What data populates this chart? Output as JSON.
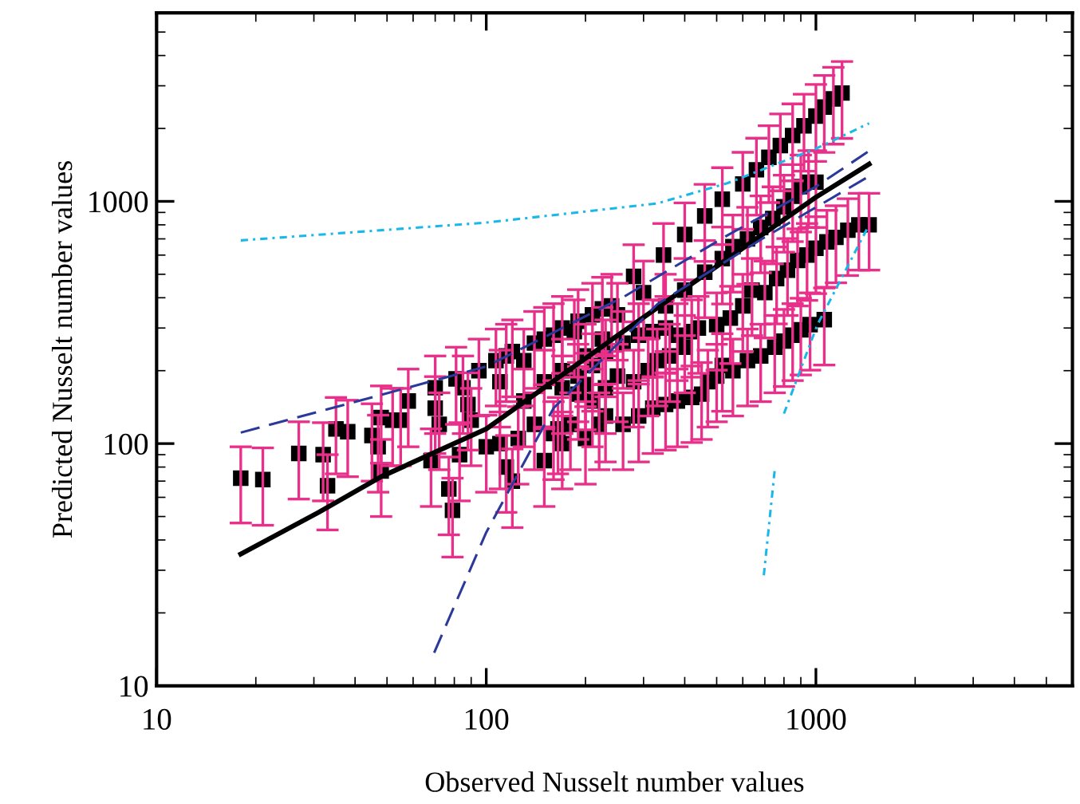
{
  "chart_data": {
    "type": "scatter",
    "xlabel": "Observed Nusselt number values",
    "ylabel": "Predicted Nusselt number values",
    "log": "xy",
    "xlim": [
      10,
      6000
    ],
    "ylim": [
      10,
      6000
    ],
    "xticks": [
      10,
      100,
      1000
    ],
    "yticks": [
      10,
      100,
      1000
    ],
    "grid": false,
    "marker": "square",
    "series": [
      {
        "color": "#000000",
        "x": [
          18,
          21,
          27,
          32,
          33,
          35,
          38,
          45,
          47,
          48,
          48,
          52,
          55,
          58,
          68,
          70,
          70,
          72,
          77,
          79,
          81,
          83,
          85,
          88,
          90,
          95,
          100,
          107,
          110,
          110,
          115,
          115,
          120,
          120,
          125,
          130,
          130,
          140,
          140,
          150,
          150,
          150,
          160,
          160,
          165,
          170,
          170,
          170,
          170,
          180,
          185,
          190,
          190,
          190,
          200,
          200,
          200,
          210,
          210,
          210,
          220,
          225,
          225,
          230,
          230,
          230,
          240,
          250,
          250,
          260,
          260,
          280,
          280,
          290,
          290,
          300,
          310,
          320,
          320,
          330,
          345,
          350,
          350,
          350,
          360,
          380,
          380,
          400,
          400,
          400,
          420,
          420,
          440,
          450,
          460,
          460,
          470,
          500,
          500,
          520,
          520,
          520,
          550,
          560,
          560,
          600,
          600,
          620,
          620,
          640,
          660,
          680,
          680,
          700,
          720,
          740,
          750,
          760,
          780,
          800,
          800,
          820,
          850,
          850,
          850,
          880,
          900,
          900,
          920,
          940,
          950,
          960,
          1000,
          1000,
          1000,
          1060,
          1060,
          1080,
          1130,
          1150,
          1200,
          1250,
          1350,
          1450
        ],
        "values": [
          72,
          71,
          91,
          90,
          67,
          115,
          112,
          108,
          97,
          77,
          128,
          125,
          125,
          150,
          85,
          170,
          140,
          120,
          65,
          53,
          185,
          90,
          170,
          145,
          125,
          200,
          97,
          220,
          180,
          100,
          80,
          230,
          70,
          240,
          105,
          220,
          150,
          260,
          120,
          270,
          180,
          85,
          280,
          110,
          115,
          300,
          200,
          170,
          100,
          120,
          290,
          320,
          190,
          160,
          105,
          175,
          230,
          340,
          210,
          150,
          120,
          360,
          270,
          240,
          170,
          130,
          370,
          340,
          190,
          260,
          120,
          490,
          180,
          280,
          130,
          420,
          200,
          290,
          140,
          220,
          600,
          300,
          370,
          145,
          230,
          280,
          150,
          730,
          430,
          250,
          290,
          155,
          300,
          160,
          870,
          510,
          180,
          310,
          190,
          1020,
          580,
          210,
          330,
          650,
          200,
          1180,
          370,
          700,
          220,
          430,
          1350,
          780,
          230,
          420,
          1520,
          850,
          250,
          480,
          1700,
          950,
          265,
          520,
          1870,
          1050,
          280,
          570,
          1150,
          295,
          2050,
          600,
          1200,
          310,
          2250,
          1200,
          640,
          2450,
          325,
          680,
          2650,
          710,
          2800,
          760,
          800,
          800
        ],
        "errors": [
          25,
          25,
          32,
          32,
          23,
          40,
          39,
          38,
          34,
          27,
          45,
          44,
          44,
          53,
          30,
          60,
          49,
          42,
          23,
          19,
          65,
          32,
          60,
          51,
          44,
          70,
          34,
          77,
          63,
          35,
          28,
          81,
          25,
          84,
          37,
          77,
          53,
          91,
          42,
          95,
          63,
          30,
          98,
          39,
          40,
          105,
          70,
          60,
          35,
          42,
          102,
          112,
          67,
          56,
          37,
          61,
          81,
          119,
          74,
          53,
          42,
          126,
          95,
          84,
          60,
          46,
          130,
          119,
          67,
          91,
          42,
          172,
          63,
          98,
          46,
          147,
          70,
          102,
          49,
          77,
          210,
          105,
          130,
          51,
          81,
          98,
          53,
          256,
          151,
          88,
          102,
          54,
          105,
          56,
          305,
          179,
          63,
          109,
          67,
          357,
          203,
          74,
          116,
          228,
          70,
          413,
          130,
          245,
          77,
          151,
          473,
          273,
          81,
          147,
          532,
          298,
          88,
          168,
          595,
          333,
          93,
          182,
          655,
          368,
          98,
          200,
          403,
          103,
          718,
          210,
          420,
          109,
          788,
          420,
          224,
          858,
          114,
          238,
          928,
          249,
          980,
          266,
          280,
          280
        ]
      },
      {
        "type": "line",
        "color": "#000000",
        "line_style": "solid",
        "marker": "none",
        "x": [
          18,
          31,
          48,
          100,
          260,
          1000,
          1450
        ],
        "values": [
          35,
          52,
          73,
          115,
          290,
          1040,
          1425
        ]
      },
      {
        "type": "line",
        "color": "#1ab8e8",
        "line_style": "dotted",
        "marker": "none",
        "x": [
          18,
          100,
          330,
          540,
          1000,
          1450
        ],
        "values": [
          690,
          817,
          980,
          1190,
          1650,
          2100
        ]
      },
      {
        "type": "line",
        "color": "#2b3a9a",
        "line_style": "dashed",
        "marker": "none",
        "x": [
          18,
          100,
          260,
          540,
          1000,
          1450
        ],
        "values": [
          111,
          208,
          402,
          725,
          1150,
          1615
        ]
      },
      {
        "type": "line",
        "color": "#2b3a9a",
        "line_style": "dashed",
        "marker": "none",
        "x": [
          69.5,
          100,
          160,
          330,
          686,
          1450
        ],
        "values": [
          13.7,
          43,
          140,
          376,
          700,
          1270
        ]
      },
      {
        "type": "line",
        "color": "#1ab8e8",
        "line_style": "dotted",
        "marker": "none",
        "x": [
          695,
          750,
          770,
          800,
          1010,
          1450
        ],
        "values": [
          28.6,
          78,
          null,
          133,
          309,
          800
        ]
      }
    ]
  }
}
